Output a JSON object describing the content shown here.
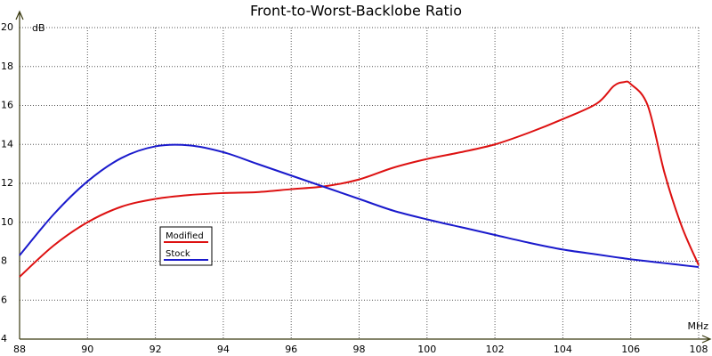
{
  "chart_data": {
    "type": "line",
    "title": "Front-to-Worst-Backlobe Ratio",
    "y_label": "dB",
    "x_label": "MHz",
    "x": [
      88,
      89,
      90,
      91,
      92,
      93,
      94,
      95,
      96,
      97,
      98,
      99,
      100,
      101,
      102,
      103,
      104,
      105,
      105.5,
      105.8,
      106,
      106.5,
      107,
      107.5,
      108
    ],
    "series": [
      {
        "name": "Modified",
        "color": "#dd1111",
        "values": [
          7.2,
          8.8,
          10.0,
          10.8,
          11.2,
          11.4,
          11.5,
          11.55,
          11.7,
          11.85,
          12.2,
          12.8,
          13.25,
          13.6,
          14.0,
          14.6,
          15.3,
          16.1,
          17.0,
          17.2,
          17.1,
          16.0,
          12.5,
          9.8,
          7.8
        ]
      },
      {
        "name": "Stock",
        "color": "#1a1acc",
        "values": [
          8.3,
          10.4,
          12.1,
          13.3,
          13.9,
          13.95,
          13.6,
          13.0,
          12.4,
          11.8,
          11.2,
          10.6,
          10.15,
          9.75,
          9.35,
          8.95,
          8.6,
          8.35,
          8.22,
          8.15,
          8.1,
          8.0,
          7.9,
          7.8,
          7.7
        ]
      }
    ],
    "xlim": [
      88,
      108
    ],
    "xticks": [
      88,
      90,
      92,
      94,
      96,
      98,
      100,
      102,
      104,
      106,
      108
    ],
    "ylim": [
      4,
      20
    ],
    "yticks": [
      4,
      6,
      8,
      10,
      12,
      14,
      16,
      18,
      20
    ],
    "grid": true
  }
}
